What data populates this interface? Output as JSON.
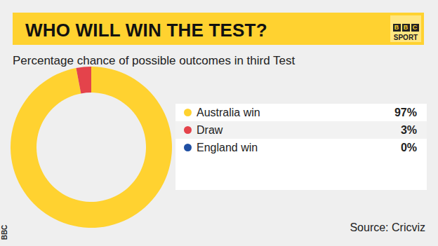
{
  "chart_data": {
    "type": "pie",
    "title": "WHO WILL WIN THE TEST?",
    "subtitle": "Percentage chance of possible outcomes in third Test",
    "categories": [
      "Australia win",
      "Draw",
      "England win"
    ],
    "values": [
      97,
      3,
      0
    ],
    "value_labels": [
      "97%",
      "3%",
      "0%"
    ],
    "colors": [
      "#ffd230",
      "#e4434b",
      "#1f4fa3"
    ],
    "data_labels": true,
    "source": "Source: Cricviz",
    "logo": [
      "B",
      "B",
      "C",
      "SPORT"
    ],
    "credit": "BBC"
  }
}
